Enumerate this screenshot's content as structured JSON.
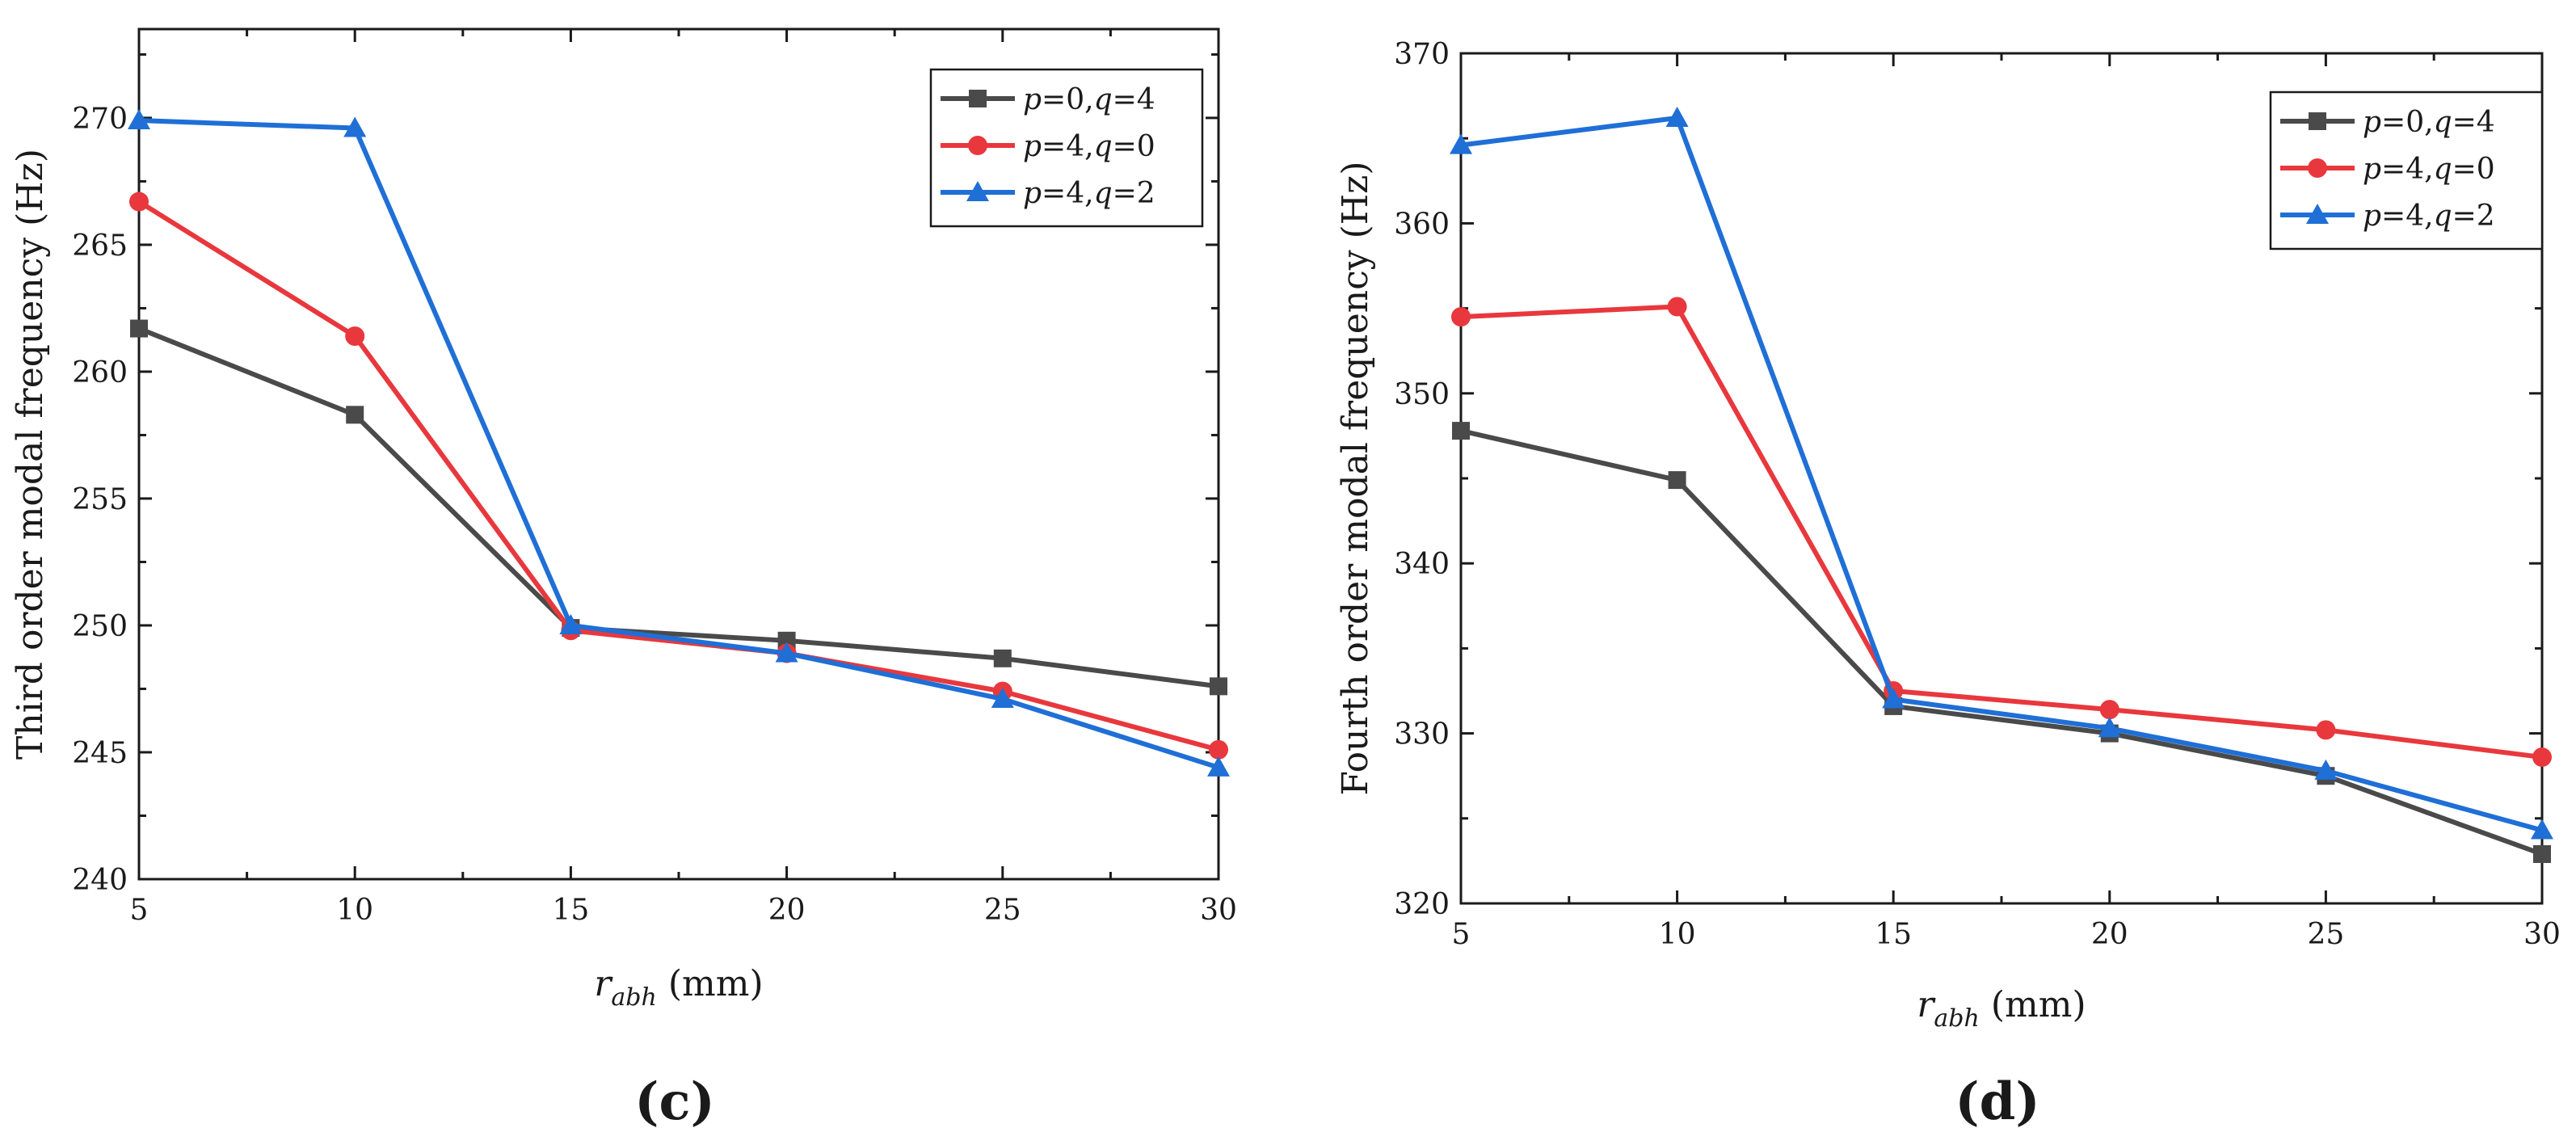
{
  "chart_data": [
    {
      "panel": "(c)",
      "type": "line",
      "title": "",
      "xlabel": {
        "symbol": "r",
        "subscript": "abh",
        "unit": " (mm)"
      },
      "ylabel": "Third order modal frequency (Hz)",
      "x": [
        5,
        10,
        15,
        20,
        25,
        30
      ],
      "xlim": [
        5,
        30
      ],
      "ylim": [
        240,
        273.5
      ],
      "xticks": [
        5,
        10,
        15,
        20,
        25,
        30
      ],
      "xtick_labels": [
        "5",
        "10",
        "15",
        "20",
        "25",
        "30"
      ],
      "yticks": [
        240,
        245,
        250,
        255,
        260,
        265,
        270
      ],
      "ytick_labels": [
        "240",
        "245",
        "250",
        "255",
        "260",
        "265",
        "270"
      ],
      "legend_position": "top-right",
      "series": [
        {
          "name": "p=0,q=4",
          "p_label": "p",
          "p_val": "=0,",
          "q_label": "q",
          "q_val": "=4",
          "color": "#4a4a4a",
          "marker": "square",
          "values": [
            261.7,
            258.3,
            249.9,
            249.4,
            248.7,
            247.6
          ]
        },
        {
          "name": "p=4,q=0",
          "p_label": "p",
          "p_val": "=4,",
          "q_label": "q",
          "q_val": "=0",
          "color": "#e8383d",
          "marker": "circle",
          "values": [
            266.7,
            261.4,
            249.8,
            248.9,
            247.4,
            245.1
          ]
        },
        {
          "name": "p=4,q=2",
          "p_label": "p",
          "p_val": "=4,",
          "q_label": "q",
          "q_val": "=2",
          "color": "#1f6fd6",
          "marker": "triangle",
          "values": [
            269.9,
            269.6,
            250.0,
            248.9,
            247.1,
            244.4
          ]
        }
      ]
    },
    {
      "panel": "(d)",
      "type": "line",
      "title": "",
      "xlabel": {
        "symbol": "r",
        "subscript": "abh",
        "unit": " (mm)"
      },
      "ylabel": "Fourth order modal frequency (Hz)",
      "x": [
        5,
        10,
        15,
        20,
        25,
        30
      ],
      "xlim": [
        5,
        30
      ],
      "ylim": [
        320,
        370
      ],
      "xticks": [
        5,
        10,
        15,
        20,
        25,
        30
      ],
      "xtick_labels": [
        "5",
        "10",
        "15",
        "20",
        "25",
        "30"
      ],
      "yticks": [
        320,
        330,
        340,
        350,
        360,
        370
      ],
      "ytick_labels": [
        "320",
        "330",
        "340",
        "350",
        "360",
        "370"
      ],
      "legend_position": "top-right",
      "series": [
        {
          "name": "p=0,q=4",
          "p_label": "p",
          "p_val": "=0,",
          "q_label": "q",
          "q_val": "=4",
          "color": "#4a4a4a",
          "marker": "square",
          "values": [
            347.8,
            344.9,
            331.6,
            330.0,
            327.5,
            322.9
          ]
        },
        {
          "name": "p=4,q=0",
          "p_label": "p",
          "p_val": "=4,",
          "q_label": "q",
          "q_val": "=0",
          "color": "#e8383d",
          "marker": "circle",
          "values": [
            354.5,
            355.1,
            332.5,
            331.4,
            330.2,
            328.6
          ]
        },
        {
          "name": "p=4,q=2",
          "p_label": "p",
          "p_val": "=4,",
          "q_label": "q",
          "q_val": "=2",
          "color": "#1f6fd6",
          "marker": "triangle",
          "values": [
            364.6,
            366.2,
            332.0,
            330.3,
            327.8,
            324.3
          ]
        }
      ]
    }
  ]
}
